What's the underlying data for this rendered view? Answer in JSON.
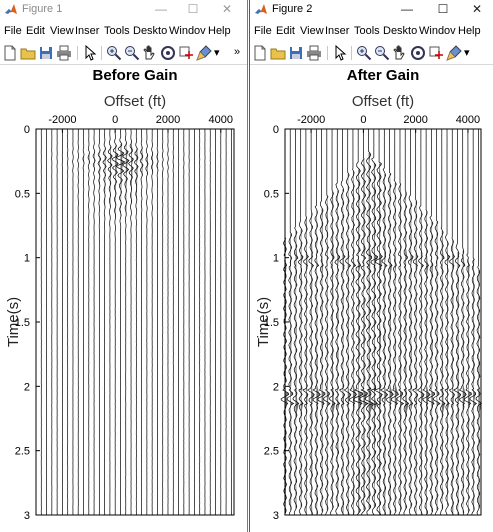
{
  "colors": {
    "trace": "#000000",
    "titlebar_inactive": "#8a8a8a",
    "window_bg": "#ffffff"
  },
  "icons": {
    "app": "matlab-icon",
    "minimize": "minimize-icon",
    "maximize": "maximize-icon",
    "close": "close-icon"
  },
  "menus": [
    "File",
    "Edit",
    "View",
    "Insert",
    "Tools",
    "Desktop",
    "Window",
    "Help"
  ],
  "menus_visible": [
    "File",
    "Edit",
    "View",
    "Inser",
    "Tools",
    "Deskto",
    "Windov",
    "Help"
  ],
  "toolbar": [
    "new-figure-icon",
    "open-folder-icon",
    "save-icon",
    "print-icon",
    "pointer-icon",
    "zoom-in-icon",
    "zoom-out-icon",
    "pan-icon",
    "rotate-icon",
    "data-cursor-icon",
    "brush-icon"
  ],
  "windows": [
    {
      "title": "Figure 1",
      "active": false
    },
    {
      "title": "Figure 2",
      "active": true
    }
  ],
  "chart_data": [
    {
      "type": "line",
      "title": "Before Gain",
      "xlabel": "Offset (ft)",
      "ylabel": "Time(s)",
      "xlim": [
        -3000,
        4500
      ],
      "ylim": [
        3,
        0
      ],
      "xticks": [
        -2000,
        0,
        2000,
        4000
      ],
      "yticks": [
        0,
        0.5,
        1,
        1.5,
        2,
        2.5,
        3
      ],
      "xtick_labels": [
        "-2000",
        "0",
        "2000",
        "4000"
      ],
      "ytick_labels": [
        "0",
        "0.5",
        "1",
        "1.5",
        "2",
        "2.5",
        "3"
      ],
      "grid": false,
      "series": {
        "trace_offsets_ft": [
          -3000,
          -2800,
          -2600,
          -2400,
          -2200,
          -2000,
          -1800,
          -1600,
          -1400,
          -1200,
          -1000,
          -800,
          -600,
          -400,
          -200,
          0,
          200,
          400,
          600,
          800,
          1000,
          1200,
          1400,
          1600,
          1800,
          2000,
          2200,
          2400,
          2600,
          2800,
          3000,
          3200,
          3400,
          3600,
          3800,
          4000,
          4200,
          4400
        ]
      }
    },
    {
      "type": "line",
      "title": "After Gain",
      "xlabel": "Offset (ft)",
      "ylabel": "Time(s)",
      "xlim": [
        -3000,
        4500
      ],
      "ylim": [
        3,
        0
      ],
      "xticks": [
        -2000,
        0,
        2000,
        4000
      ],
      "yticks": [
        0,
        0.5,
        1,
        1.5,
        2,
        2.5,
        3
      ],
      "xtick_labels": [
        "-2000",
        "0",
        "2000",
        "4000"
      ],
      "ytick_labels": [
        "0",
        "0.5",
        "1",
        "1.5",
        "2",
        "2.5",
        "3"
      ],
      "grid": false,
      "series": {
        "trace_offsets_ft": [
          -3000,
          -2800,
          -2600,
          -2400,
          -2200,
          -2000,
          -1800,
          -1600,
          -1400,
          -1200,
          -1000,
          -800,
          -600,
          -400,
          -200,
          0,
          200,
          400,
          600,
          800,
          1000,
          1200,
          1400,
          1600,
          1800,
          2000,
          2200,
          2400,
          2600,
          2800,
          3000,
          3200,
          3400,
          3600,
          3800,
          4000,
          4200,
          4400
        ]
      }
    }
  ]
}
